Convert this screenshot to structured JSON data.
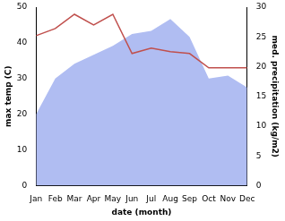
{
  "chart_data": {
    "type": "line",
    "categories": [
      "Jan",
      "Feb",
      "Mar",
      "Apr",
      "May",
      "Jun",
      "Jul",
      "Aug",
      "Sep",
      "Oct",
      "Nov",
      "Dec"
    ],
    "x_label": "date (month)",
    "y_label": "max temp (C)",
    "y2_label": "med. precipitation (kg/m2)",
    "series": [
      {
        "name": "max temp",
        "type": "line",
        "color": "#c0504d",
        "values": [
          42,
          44,
          48,
          45,
          48,
          37,
          38.5,
          37.5,
          37,
          33,
          33,
          33
        ]
      },
      {
        "name": "med. precipitation",
        "type": "area",
        "axis": "y2",
        "color": "#b0bdf2",
        "values": [
          12,
          18,
          20.5,
          22,
          23.5,
          25.5,
          26,
          28,
          25,
          18,
          18.5,
          16.5
        ]
      }
    ],
    "ylim": [
      0,
      50
    ],
    "yticks": [
      0,
      10,
      20,
      30,
      40,
      50
    ],
    "y2lim": [
      0,
      30
    ],
    "y2ticks": [
      0,
      5,
      10,
      15,
      20,
      25,
      30
    ],
    "grid": false
  }
}
